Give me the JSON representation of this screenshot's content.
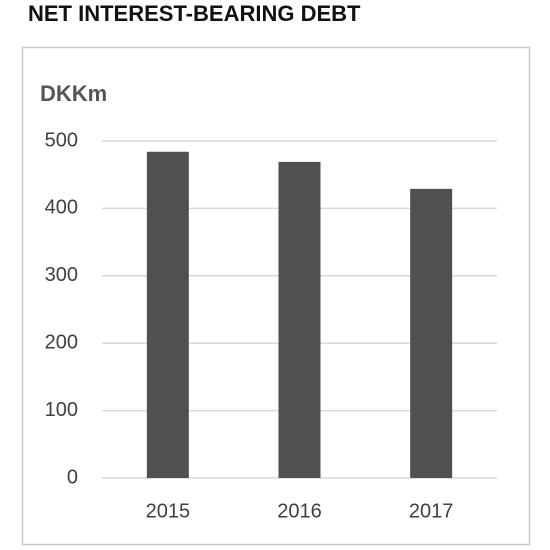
{
  "chart_data": {
    "type": "bar",
    "title": "NET INTEREST-BEARING DEBT",
    "y_label": "DKKm",
    "categories": [
      "2015",
      "2016",
      "2017"
    ],
    "values": [
      484,
      469,
      429
    ],
    "color": "#505052",
    "ylim": [
      0,
      500
    ],
    "yticks": [
      0,
      100,
      200,
      300,
      400,
      500
    ],
    "grid": true
  }
}
